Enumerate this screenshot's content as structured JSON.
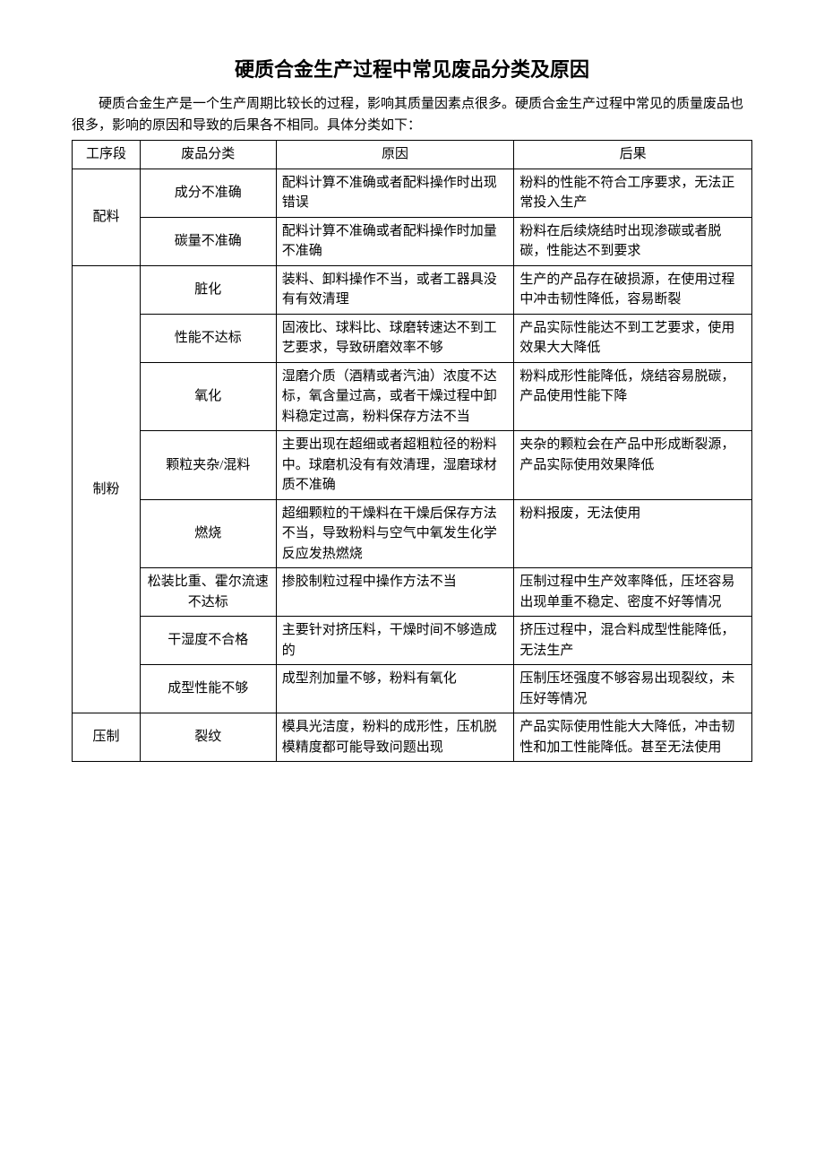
{
  "title": "硬质合金生产过程中常见废品分类及原因",
  "intro": "硬质合金生产是一个生产周期比较长的过程，影响其质量因素点很多。硬质合金生产过程中常见的质量废品也很多，影响的原因和导致的后果各不相同。具体分类如下：",
  "headers": {
    "stage": "工序段",
    "type": "废品分类",
    "cause": "原因",
    "result": "后果"
  },
  "stages": [
    {
      "name": "配料",
      "rows": [
        {
          "type": "成分不准确",
          "cause": "配料计算不准确或者配料操作时出现错误",
          "result": "粉料的性能不符合工序要求，无法正常投入生产"
        },
        {
          "type": "碳量不准确",
          "cause": "配料计算不准确或者配料操作时加量不准确",
          "result": "粉料在后续烧结时出现渗碳或者脱碳，性能达不到要求"
        }
      ]
    },
    {
      "name": "制粉",
      "rows": [
        {
          "type": "脏化",
          "cause": "装料、卸料操作不当，或者工器具没有有效清理",
          "result": "生产的产品存在破损源，在使用过程中冲击韧性降低，容易断裂"
        },
        {
          "type": "性能不达标",
          "cause": "固液比、球料比、球磨转速达不到工艺要求，导致研磨效率不够",
          "result": "产品实际性能达不到工艺要求，使用效果大大降低"
        },
        {
          "type": "氧化",
          "cause": "湿磨介质（酒精或者汽油）浓度不达标，氧含量过高，或者干燥过程中卸料稳定过高，粉料保存方法不当",
          "result": "粉料成形性能降低，烧结容易脱碳，产品使用性能下降"
        },
        {
          "type": "颗粒夹杂/混料",
          "cause": "主要出现在超细或者超粗粒径的粉料中。球磨机没有有效清理，湿磨球材质不准确",
          "result": "夹杂的颗粒会在产品中形成断裂源，产品实际使用效果降低"
        },
        {
          "type": "燃烧",
          "cause": "超细颗粒的干燥料在干燥后保存方法不当，导致粉料与空气中氧发生化学反应发热燃烧",
          "result": "粉料报废，无法使用"
        },
        {
          "type": "松装比重、霍尔流速不达标",
          "cause": "掺胶制粒过程中操作方法不当",
          "result": "压制过程中生产效率降低，压坯容易出现单重不稳定、密度不好等情况"
        },
        {
          "type": "干湿度不合格",
          "cause": "主要针对挤压料，干燥时间不够造成的",
          "result": "挤压过程中，混合料成型性能降低，无法生产"
        },
        {
          "type": "成型性能不够",
          "cause": "成型剂加量不够，粉料有氧化",
          "result": "压制压坯强度不够容易出现裂纹，未压好等情况"
        }
      ]
    },
    {
      "name": "压制",
      "rows": [
        {
          "type": "裂纹",
          "cause": "模具光洁度，粉料的成形性，压机脱模精度都可能导致问题出现",
          "result": "产品实际使用性能大大降低，冲击韧性和加工性能降低。甚至无法使用"
        }
      ]
    }
  ]
}
